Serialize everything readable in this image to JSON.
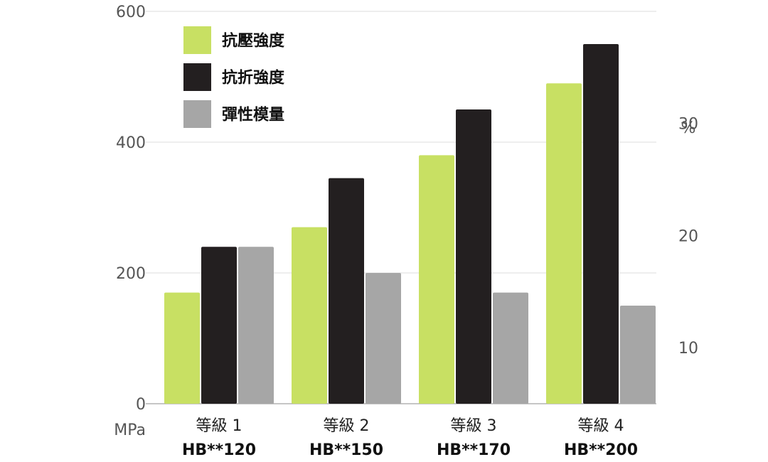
{
  "chart_data": {
    "type": "bar",
    "categories": [
      "等級 1",
      "等級 2",
      "等級 3",
      "等級 4"
    ],
    "category_sublabels": [
      "HB**120",
      "HB**150",
      "HB**170",
      "HB**200"
    ],
    "left_axis_unit": "MPa",
    "right_axis_unit": "%",
    "ylim": [
      0,
      600
    ],
    "yticks": [
      "0",
      "200",
      "400",
      "600"
    ],
    "right_ylim": [
      5,
      40
    ],
    "right_yticks": [
      "10",
      "20",
      "30"
    ],
    "grid": true,
    "legend_position": "top-left",
    "series": [
      {
        "name": "抗壓強度",
        "color": "#c8e063",
        "axis": "left",
        "values": [
          170,
          270,
          380,
          490
        ]
      },
      {
        "name": "抗折強度",
        "color": "#231f20",
        "axis": "left",
        "values": [
          240,
          345,
          450,
          550
        ]
      },
      {
        "name": "彈性模量",
        "color": "#a6a6a6",
        "axis": "left",
        "values": [
          240,
          200,
          170,
          150
        ]
      }
    ]
  }
}
